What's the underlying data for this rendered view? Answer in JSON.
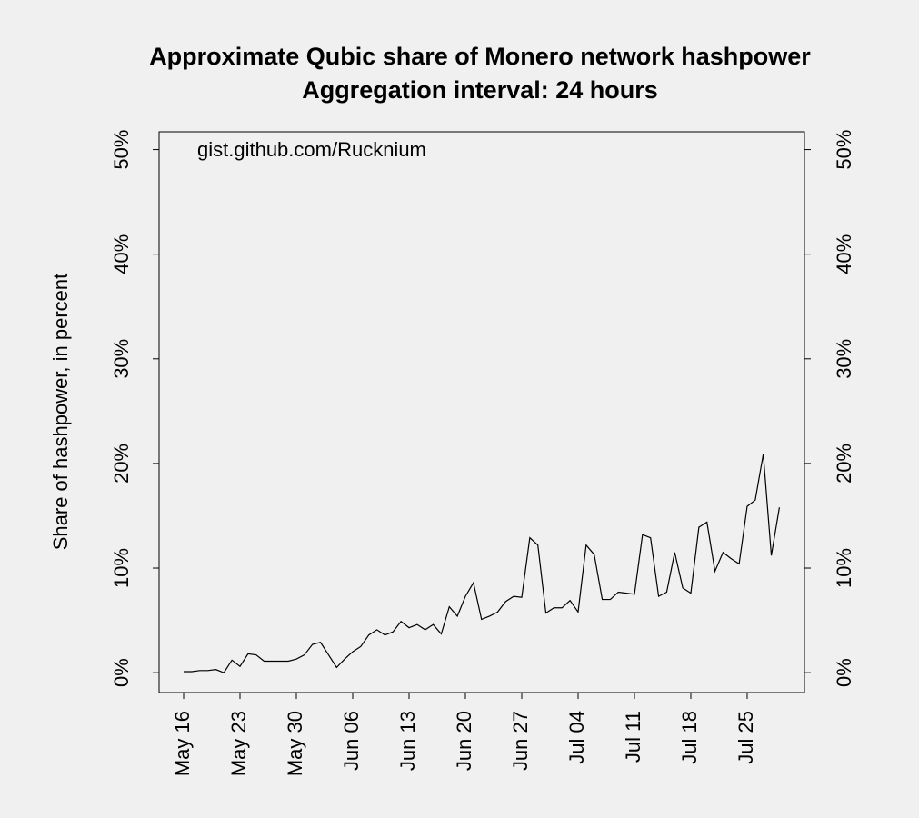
{
  "chart_data": {
    "type": "line",
    "title": "Approximate Qubic share of Monero network hashpower",
    "subtitle": "Aggregation interval: 24 hours",
    "y_label": "Share of hashpower, in percent",
    "annotation": "gist.github.com/Rucknium",
    "color": "#000000",
    "categories": [
      "May 16",
      null,
      null,
      null,
      null,
      null,
      null,
      "May 23",
      null,
      null,
      null,
      null,
      null,
      null,
      "May 30",
      null,
      null,
      null,
      null,
      null,
      null,
      "Jun 06",
      null,
      null,
      null,
      null,
      null,
      null,
      "Jun 13",
      null,
      null,
      null,
      null,
      null,
      null,
      "Jun 20",
      null,
      null,
      null,
      null,
      null,
      null,
      "Jun 27",
      null,
      null,
      null,
      null,
      null,
      null,
      "Jul 04",
      null,
      null,
      null,
      null,
      null,
      null,
      "Jul 11",
      null,
      null,
      null,
      null,
      null,
      null,
      "Jul 18",
      null,
      null,
      null,
      null,
      null,
      null,
      "Jul 25",
      null,
      null,
      null,
      null
    ],
    "values": [
      0.1,
      0.1,
      0.2,
      0.2,
      0.3,
      0.0,
      1.2,
      0.6,
      1.8,
      1.7,
      1.1,
      1.1,
      1.1,
      1.1,
      1.3,
      1.7,
      2.7,
      2.9,
      1.7,
      0.5,
      1.3,
      2.0,
      2.5,
      3.6,
      4.1,
      3.6,
      3.9,
      4.9,
      4.3,
      4.6,
      4.1,
      4.6,
      3.7,
      6.3,
      5.4,
      7.3,
      8.6,
      5.1,
      5.4,
      5.8,
      6.8,
      7.3,
      7.2,
      12.9,
      12.2,
      5.7,
      6.2,
      6.2,
      6.9,
      5.8,
      12.2,
      11.3,
      7.0,
      7.0,
      7.7,
      7.6,
      7.5,
      13.2,
      12.9,
      7.3,
      7.7,
      11.5,
      8.1,
      7.6,
      13.9,
      14.4,
      9.7,
      11.5,
      10.9,
      10.4,
      15.9,
      16.5,
      20.9,
      11.2,
      15.8
    ],
    "ylim": [
      -1.9,
      51.7
    ],
    "yticks": [
      {
        "value": 0,
        "label": "0%"
      },
      {
        "value": 10,
        "label": "10%"
      },
      {
        "value": 20,
        "label": "20%"
      },
      {
        "value": 30,
        "label": "30%"
      },
      {
        "value": 40,
        "label": "40%"
      },
      {
        "value": 50,
        "label": "50%"
      }
    ],
    "grid": false
  }
}
